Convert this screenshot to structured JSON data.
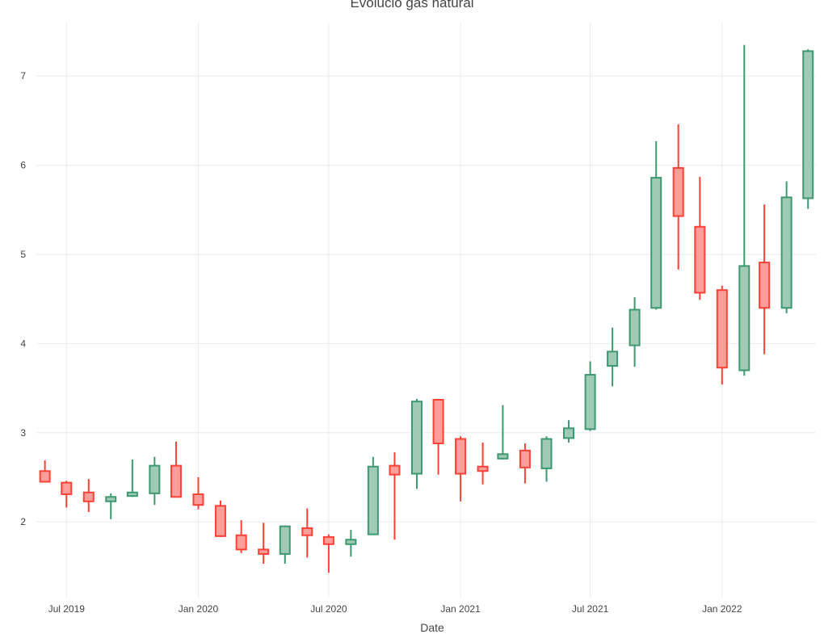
{
  "chart_data": {
    "type": "candlestick",
    "title": "Evolució gas natural",
    "xlabel": "Date",
    "ylabel": "",
    "x_range": [
      "2019-05-20",
      "2022-05-12"
    ],
    "ylim": [
      1.15,
      7.6
    ],
    "x_ticks": [
      {
        "date": "2019-07-01",
        "label": "Jul 2019"
      },
      {
        "date": "2020-01-01",
        "label": "Jan 2020"
      },
      {
        "date": "2020-07-01",
        "label": "Jul 2020"
      },
      {
        "date": "2021-01-01",
        "label": "Jan 2021"
      },
      {
        "date": "2021-07-01",
        "label": "Jul 2021"
      },
      {
        "date": "2022-01-01",
        "label": "Jan 2022"
      }
    ],
    "y_ticks": [
      2,
      3,
      4,
      5,
      6,
      7
    ],
    "grid": true,
    "increasing_color": "#3d9970",
    "increasing_fill": "#9fcbb6",
    "decreasing_color": "#ff4136",
    "decreasing_fill": "#ff9e99",
    "candles": [
      {
        "date": "2019-06-01",
        "open": 2.57,
        "high": 2.69,
        "low": 2.45,
        "close": 2.45
      },
      {
        "date": "2019-07-01",
        "open": 2.44,
        "high": 2.46,
        "low": 2.16,
        "close": 2.31
      },
      {
        "date": "2019-08-01",
        "open": 2.33,
        "high": 2.48,
        "low": 2.11,
        "close": 2.23
      },
      {
        "date": "2019-09-01",
        "open": 2.23,
        "high": 2.32,
        "low": 2.03,
        "close": 2.28
      },
      {
        "date": "2019-10-01",
        "open": 2.29,
        "high": 2.7,
        "low": 2.28,
        "close": 2.33
      },
      {
        "date": "2019-11-01",
        "open": 2.32,
        "high": 2.73,
        "low": 2.19,
        "close": 2.63
      },
      {
        "date": "2019-12-01",
        "open": 2.63,
        "high": 2.9,
        "low": 2.28,
        "close": 2.28
      },
      {
        "date": "2020-01-01",
        "open": 2.31,
        "high": 2.5,
        "low": 2.14,
        "close": 2.19
      },
      {
        "date": "2020-02-01",
        "open": 2.18,
        "high": 2.24,
        "low": 1.83,
        "close": 1.84
      },
      {
        "date": "2020-03-01",
        "open": 1.85,
        "high": 2.02,
        "low": 1.65,
        "close": 1.69
      },
      {
        "date": "2020-04-01",
        "open": 1.69,
        "high": 1.99,
        "low": 1.53,
        "close": 1.64
      },
      {
        "date": "2020-05-01",
        "open": 1.64,
        "high": 1.96,
        "low": 1.53,
        "close": 1.95
      },
      {
        "date": "2020-06-01",
        "open": 1.93,
        "high": 2.15,
        "low": 1.6,
        "close": 1.85
      },
      {
        "date": "2020-07-01",
        "open": 1.83,
        "high": 1.86,
        "low": 1.43,
        "close": 1.75
      },
      {
        "date": "2020-08-01",
        "open": 1.75,
        "high": 1.91,
        "low": 1.61,
        "close": 1.8
      },
      {
        "date": "2020-09-01",
        "open": 1.86,
        "high": 2.73,
        "low": 1.86,
        "close": 2.62
      },
      {
        "date": "2020-10-01",
        "open": 2.63,
        "high": 2.78,
        "low": 1.8,
        "close": 2.53
      },
      {
        "date": "2020-11-01",
        "open": 2.54,
        "high": 3.38,
        "low": 2.37,
        "close": 3.35
      },
      {
        "date": "2020-12-01",
        "open": 3.37,
        "high": 3.38,
        "low": 2.53,
        "close": 2.88
      },
      {
        "date": "2021-01-01",
        "open": 2.93,
        "high": 2.96,
        "low": 2.23,
        "close": 2.54
      },
      {
        "date": "2021-02-01",
        "open": 2.62,
        "high": 2.89,
        "low": 2.42,
        "close": 2.57
      },
      {
        "date": "2021-03-01",
        "open": 2.71,
        "high": 3.31,
        "low": 2.7,
        "close": 2.76
      },
      {
        "date": "2021-04-01",
        "open": 2.8,
        "high": 2.88,
        "low": 2.43,
        "close": 2.61
      },
      {
        "date": "2021-05-01",
        "open": 2.6,
        "high": 2.96,
        "low": 2.45,
        "close": 2.93
      },
      {
        "date": "2021-06-01",
        "open": 2.94,
        "high": 3.14,
        "low": 2.89,
        "close": 3.05
      },
      {
        "date": "2021-07-01",
        "open": 3.04,
        "high": 3.8,
        "low": 3.02,
        "close": 3.65
      },
      {
        "date": "2021-08-01",
        "open": 3.75,
        "high": 4.18,
        "low": 3.52,
        "close": 3.91
      },
      {
        "date": "2021-09-01",
        "open": 3.98,
        "high": 4.52,
        "low": 3.74,
        "close": 4.38
      },
      {
        "date": "2021-10-01",
        "open": 4.4,
        "high": 6.27,
        "low": 4.38,
        "close": 5.86
      },
      {
        "date": "2021-11-01",
        "open": 5.97,
        "high": 6.46,
        "low": 4.83,
        "close": 5.43
      },
      {
        "date": "2021-12-01",
        "open": 5.31,
        "high": 5.87,
        "low": 4.49,
        "close": 4.57
      },
      {
        "date": "2022-01-01",
        "open": 4.6,
        "high": 4.65,
        "low": 3.54,
        "close": 3.73
      },
      {
        "date": "2022-02-01",
        "open": 3.7,
        "high": 7.35,
        "low": 3.64,
        "close": 4.87
      },
      {
        "date": "2022-03-01",
        "open": 4.91,
        "high": 5.56,
        "low": 3.88,
        "close": 4.4
      },
      {
        "date": "2022-04-01",
        "open": 4.4,
        "high": 5.82,
        "low": 4.34,
        "close": 5.64
      },
      {
        "date": "2022-05-01",
        "open": 5.63,
        "high": 7.3,
        "low": 5.51,
        "close": 7.28
      }
    ]
  }
}
